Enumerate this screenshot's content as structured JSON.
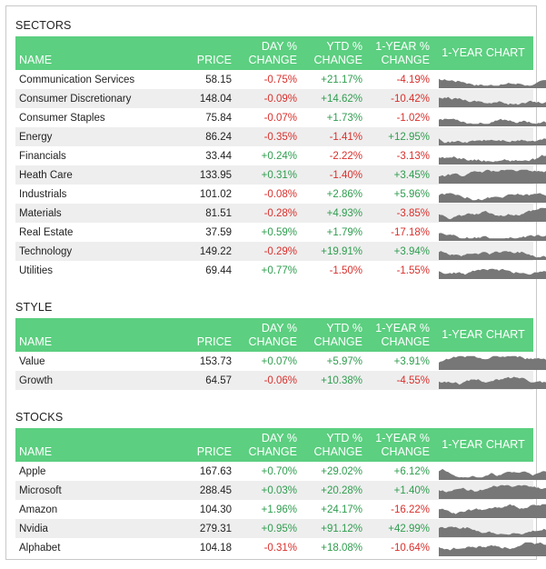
{
  "colors": {
    "header_bg": "#5ccf80",
    "negative": "#d9302c",
    "positive": "#2f9d4f",
    "spark": "#777777"
  },
  "headers": {
    "name": "NAME",
    "price": "PRICE",
    "day_1": "DAY %",
    "day_2": "CHANGE",
    "ytd_1": "YTD %",
    "ytd_2": "CHANGE",
    "year_1": "1-YEAR %",
    "year_2": "CHANGE",
    "chart": "1-YEAR CHART"
  },
  "sections": [
    {
      "title": "SECTORS",
      "rows": [
        {
          "name": "Communication Services",
          "price": "58.15",
          "day": "-0.75%",
          "ytd": "+21.17%",
          "year": "-4.19%"
        },
        {
          "name": "Consumer Discretionary",
          "price": "148.04",
          "day": "-0.09%",
          "ytd": "+14.62%",
          "year": "-10.42%"
        },
        {
          "name": "Consumer Staples",
          "price": "75.84",
          "day": "-0.07%",
          "ytd": "+1.73%",
          "year": "-1.02%"
        },
        {
          "name": "Energy",
          "price": "86.24",
          "day": "-0.35%",
          "ytd": "-1.41%",
          "year": "+12.95%"
        },
        {
          "name": "Financials",
          "price": "33.44",
          "day": "+0.24%",
          "ytd": "-2.22%",
          "year": "-3.13%"
        },
        {
          "name": "Heath Care",
          "price": "133.95",
          "day": "+0.31%",
          "ytd": "-1.40%",
          "year": "+3.45%"
        },
        {
          "name": "Industrials",
          "price": "101.02",
          "day": "-0.08%",
          "ytd": "+2.86%",
          "year": "+5.96%"
        },
        {
          "name": "Materials",
          "price": "81.51",
          "day": "-0.28%",
          "ytd": "+4.93%",
          "year": "-3.85%"
        },
        {
          "name": "Real Estate",
          "price": "37.59",
          "day": "+0.59%",
          "ytd": "+1.79%",
          "year": "-17.18%"
        },
        {
          "name": "Technology",
          "price": "149.22",
          "day": "-0.29%",
          "ytd": "+19.91%",
          "year": "+3.94%"
        },
        {
          "name": "Utilities",
          "price": "69.44",
          "day": "+0.77%",
          "ytd": "-1.50%",
          "year": "-1.55%"
        }
      ]
    },
    {
      "title": "STYLE",
      "rows": [
        {
          "name": "Value",
          "price": "153.73",
          "day": "+0.07%",
          "ytd": "+5.97%",
          "year": "+3.91%"
        },
        {
          "name": "Growth",
          "price": "64.57",
          "day": "-0.06%",
          "ytd": "+10.38%",
          "year": "-4.55%"
        }
      ]
    },
    {
      "title": "STOCKS",
      "rows": [
        {
          "name": "Apple",
          "price": "167.63",
          "day": "+0.70%",
          "ytd": "+29.02%",
          "year": "+6.12%"
        },
        {
          "name": "Microsoft",
          "price": "288.45",
          "day": "+0.03%",
          "ytd": "+20.28%",
          "year": "+1.40%"
        },
        {
          "name": "Amazon",
          "price": "104.30",
          "day": "+1.96%",
          "ytd": "+24.17%",
          "year": "-16.22%"
        },
        {
          "name": "Nvidia",
          "price": "279.31",
          "day": "+0.95%",
          "ytd": "+91.12%",
          "year": "+42.99%"
        },
        {
          "name": "Alphabet",
          "price": "104.18",
          "day": "-0.31%",
          "ytd": "+18.08%",
          "year": "-10.64%"
        }
      ]
    }
  ]
}
